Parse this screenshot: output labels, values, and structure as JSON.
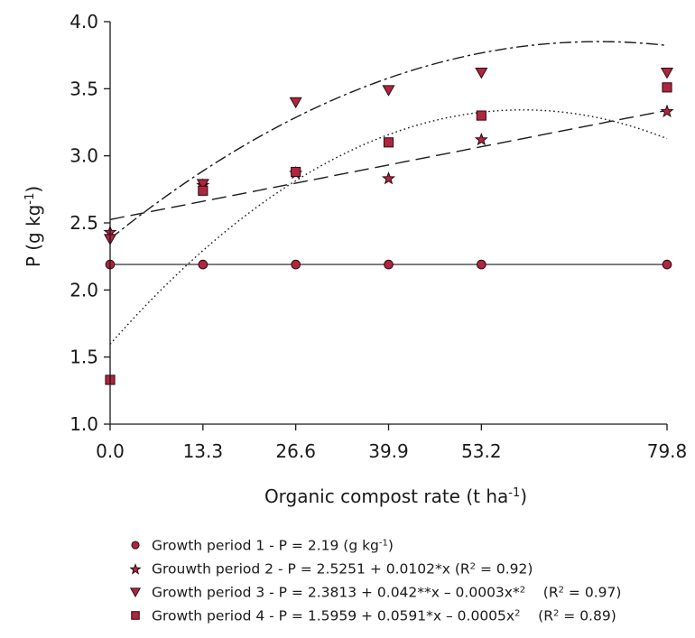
{
  "chart_data": {
    "type": "scatter",
    "xlabel": "Organic compost rate (t ha",
    "xlabel_sup": "-1",
    "xlabel_end": ")",
    "ylabel": "P (g kg",
    "ylabel_sup": "-1",
    "ylabel_end": ")",
    "x_ticks": [
      "0.0",
      "13.3",
      "26.6",
      "39.9",
      "53.2",
      "79.8"
    ],
    "x_tick_values": [
      0,
      13.3,
      26.6,
      39.9,
      53.2,
      79.8
    ],
    "y_ticks": [
      "1.0",
      "1.5",
      "2.0",
      "2.5",
      "3.0",
      "3.5",
      "4.0"
    ],
    "ylim": [
      1.0,
      4.0
    ],
    "xlim": [
      0,
      79.8
    ],
    "marker_color": "#b0253f",
    "series": [
      {
        "marker": "circle",
        "values": [
          2.19,
          2.19,
          2.19,
          2.19,
          2.19,
          2.19
        ],
        "fit": {
          "type": "constant",
          "c": 2.19,
          "line": "solid"
        },
        "legend": {
          "parts": [
            {
              "t": "Growth period 1 - P = 2.19 (g kg"
            },
            {
              "t": "-1",
              "sup": true
            },
            {
              "t": ")"
            }
          ]
        }
      },
      {
        "marker": "star",
        "values": [
          2.43,
          2.78,
          2.87,
          2.83,
          3.12,
          3.33
        ],
        "fit": {
          "type": "linear",
          "a": 2.5251,
          "b": 0.0102,
          "line": "longdash"
        },
        "legend": {
          "parts": [
            {
              "t": "Grouwth period 2 - P = 2.5251 + 0.0102*x (R"
            },
            {
              "t": "2",
              "sup": true
            },
            {
              "t": " = 0.92)"
            }
          ]
        }
      },
      {
        "marker": "triangle",
        "values": [
          2.38,
          2.79,
          3.4,
          3.49,
          3.62,
          3.62
        ],
        "fit": {
          "type": "quadratic",
          "a": 2.3813,
          "b": 0.042,
          "c": -0.0003,
          "line": "dashdot"
        },
        "legend": {
          "parts": [
            {
              "t": "Growth period 3 - P = 2.3813 + 0.042**x – 0.0003x*"
            },
            {
              "t": "2",
              "sup": true
            },
            {
              "t": "    (R",
              "space": true
            },
            {
              "t": "2",
              "sup": true
            },
            {
              "t": " = 0.97)"
            }
          ]
        }
      },
      {
        "marker": "square",
        "values": [
          1.33,
          2.74,
          2.88,
          3.1,
          3.3,
          3.51
        ],
        "fit": {
          "type": "quadratic",
          "a": 1.5959,
          "b": 0.0591,
          "c": -0.0005,
          "line": "dotted"
        },
        "legend": {
          "parts": [
            {
              "t": "Growth period 4 - P = 1.5959 + 0.0591*x – 0.0005x"
            },
            {
              "t": "2",
              "sup": true
            },
            {
              "t": "    (R",
              "space": true
            },
            {
              "t": "2",
              "sup": true
            },
            {
              "t": " = 0.89)"
            }
          ]
        }
      }
    ]
  }
}
